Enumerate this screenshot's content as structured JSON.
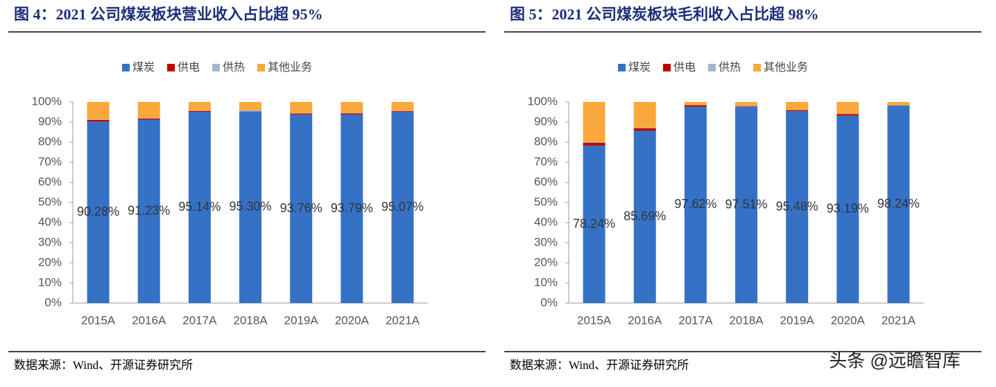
{
  "chart_data": [
    {
      "type": "stacked_bar",
      "title": "图 4：2021 公司煤炭板块营业收入占比超 95%",
      "categories": [
        "2015A",
        "2016A",
        "2017A",
        "2018A",
        "2019A",
        "2020A",
        "2021A"
      ],
      "series": [
        {
          "name": "煤炭",
          "color": "#3572c6",
          "values": [
            90.28,
            91.23,
            95.14,
            95.3,
            93.76,
            93.79,
            95.07
          ],
          "value_labels": [
            "90.28%",
            "91.23%",
            "95.14%",
            "95.30%",
            "93.76%",
            "93.79%",
            "95.07%"
          ]
        },
        {
          "name": "供电",
          "color": "#c00000",
          "values": [
            0.8,
            0.5,
            0.4,
            0.1,
            0.5,
            0.5,
            0.4
          ]
        },
        {
          "name": "供热",
          "color": "#a5b5c5",
          "values": [
            0.2,
            0.3,
            0.1,
            0.5,
            0.2,
            0.2,
            0.1
          ]
        },
        {
          "name": "其他业务",
          "color": "#f9a93b",
          "values": [
            8.72,
            7.97,
            4.36,
            4.1,
            5.54,
            5.51,
            4.43
          ]
        }
      ],
      "ylim": [
        0,
        100
      ],
      "yticks": [
        {
          "value": 0,
          "label": "0%"
        },
        {
          "value": 10,
          "label": "10%"
        },
        {
          "value": 20,
          "label": "20%"
        },
        {
          "value": 30,
          "label": "30%"
        },
        {
          "value": 40,
          "label": "40%"
        },
        {
          "value": 50,
          "label": "50%"
        },
        {
          "value": 60,
          "label": "60%"
        },
        {
          "value": 70,
          "label": "70%"
        },
        {
          "value": 80,
          "label": "80%"
        },
        {
          "value": 90,
          "label": "90%"
        },
        {
          "value": 100,
          "label": "100%"
        }
      ],
      "source": "数据来源：Wind、开源证券研究所"
    },
    {
      "type": "stacked_bar",
      "title": "图 5：2021 公司煤炭板块毛利收入占比超 98%",
      "categories": [
        "2015A",
        "2016A",
        "2017A",
        "2018A",
        "2019A",
        "2020A",
        "2021A"
      ],
      "series": [
        {
          "name": "煤炭",
          "color": "#3572c6",
          "values": [
            78.24,
            85.69,
            97.62,
            97.51,
            95.48,
            93.19,
            98.24
          ],
          "value_labels": [
            "78.24%",
            "85.69%",
            "97.62%",
            "97.51%",
            "95.48%",
            "93.19%",
            "98.24%"
          ]
        },
        {
          "name": "供电",
          "color": "#c00000",
          "values": [
            1.5,
            1.2,
            0.8,
            0.3,
            0.5,
            0.8,
            0
          ]
        },
        {
          "name": "供热",
          "color": "#a5b5c5",
          "values": [
            0.3,
            0.2,
            0.1,
            0.3,
            0.1,
            0.1,
            0
          ]
        },
        {
          "name": "其他业务",
          "color": "#f9a93b",
          "values": [
            19.96,
            12.91,
            1.48,
            1.89,
            3.92,
            5.91,
            1.76
          ]
        }
      ],
      "ylim": [
        0,
        100
      ],
      "yticks": [
        {
          "value": 0,
          "label": "0%"
        },
        {
          "value": 10,
          "label": "10%"
        },
        {
          "value": 20,
          "label": "20%"
        },
        {
          "value": 30,
          "label": "30%"
        },
        {
          "value": 40,
          "label": "40%"
        },
        {
          "value": 50,
          "label": "50%"
        },
        {
          "value": 60,
          "label": "60%"
        },
        {
          "value": 70,
          "label": "70%"
        },
        {
          "value": 80,
          "label": "80%"
        },
        {
          "value": 90,
          "label": "90%"
        },
        {
          "value": 100,
          "label": "100%"
        }
      ],
      "source": "数据来源：Wind、开源证券研究所"
    }
  ],
  "watermark": "头条 @远瞻智库"
}
